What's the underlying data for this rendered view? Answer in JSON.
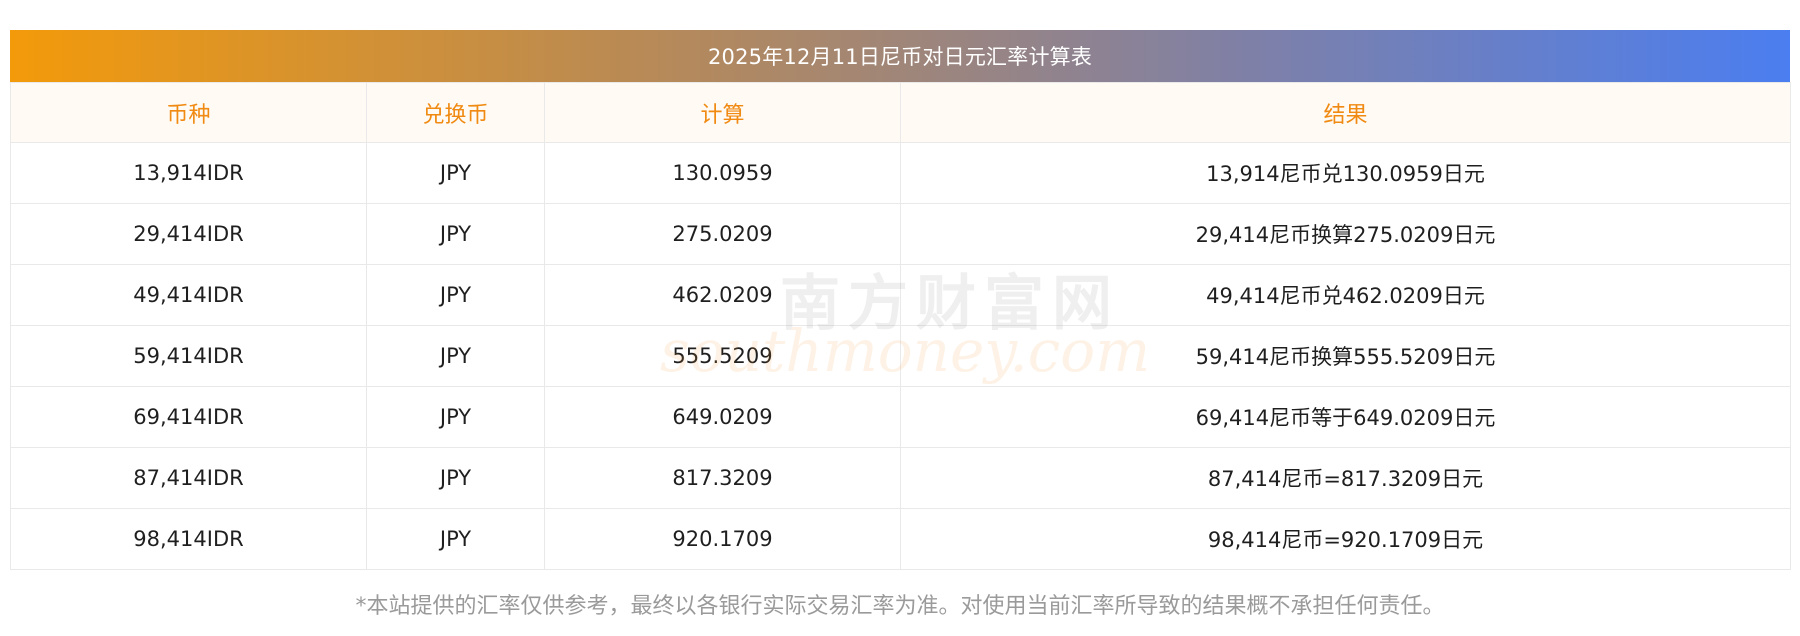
{
  "title": "2025年12月11日尼币对日元汇率计算表",
  "table": {
    "headers": [
      "币种",
      "兑换币",
      "计算",
      "结果"
    ],
    "rows": [
      [
        "13,914IDR",
        "JPY",
        "130.0959",
        "13,914尼币兑130.0959日元"
      ],
      [
        "29,414IDR",
        "JPY",
        "275.0209",
        "29,414尼币换算275.0209日元"
      ],
      [
        "49,414IDR",
        "JPY",
        "462.0209",
        "49,414尼币兑462.0209日元"
      ],
      [
        "59,414IDR",
        "JPY",
        "555.5209",
        "59,414尼币换算555.5209日元"
      ],
      [
        "69,414IDR",
        "JPY",
        "649.0209",
        "69,414尼币等于649.0209日元"
      ],
      [
        "87,414IDR",
        "JPY",
        "817.3209",
        "87,414尼币=817.3209日元"
      ],
      [
        "98,414IDR",
        "JPY",
        "920.1709",
        "98,414尼币=920.1709日元"
      ]
    ]
  },
  "watermark": {
    "cn": "南方财富网",
    "en": "southmoney.com"
  },
  "disclaimer": "*本站提供的汇率仅供参考，最终以各银行实际交易汇率为准。对使用当前汇率所导致的结果概不承担任何责任。",
  "colors": {
    "header_text": "#f08a12",
    "gradient_start": "#f39a0a",
    "gradient_end": "#4b7ef0"
  }
}
